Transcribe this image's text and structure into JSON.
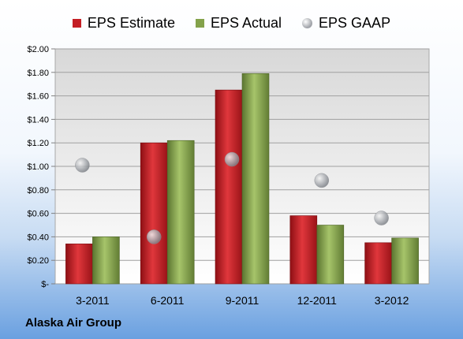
{
  "chart_data": {
    "type": "bar",
    "categories": [
      "3-2011",
      "6-2011",
      "9-2011",
      "12-2011",
      "3-2012"
    ],
    "series": [
      {
        "name": "EPS Estimate",
        "kind": "bar",
        "color": "#c41e24",
        "values": [
          0.34,
          1.2,
          1.65,
          0.58,
          0.35
        ]
      },
      {
        "name": "EPS Actual",
        "kind": "bar",
        "color": "#84a24a",
        "values": [
          0.4,
          1.22,
          1.79,
          0.5,
          0.39
        ]
      },
      {
        "name": "EPS GAAP",
        "kind": "marker",
        "color": "#b0b3b8",
        "values": [
          1.01,
          0.4,
          1.06,
          0.88,
          0.56
        ]
      }
    ],
    "ylim": [
      0,
      2.0
    ],
    "yticks": [
      "$-",
      "$0.20",
      "$0.40",
      "$0.60",
      "$0.80",
      "$1.00",
      "$1.20",
      "$1.40",
      "$1.60",
      "$1.80",
      "$2.00"
    ],
    "grid": true,
    "legend": "top"
  },
  "footer": {
    "company": "Alaska Air Group"
  }
}
